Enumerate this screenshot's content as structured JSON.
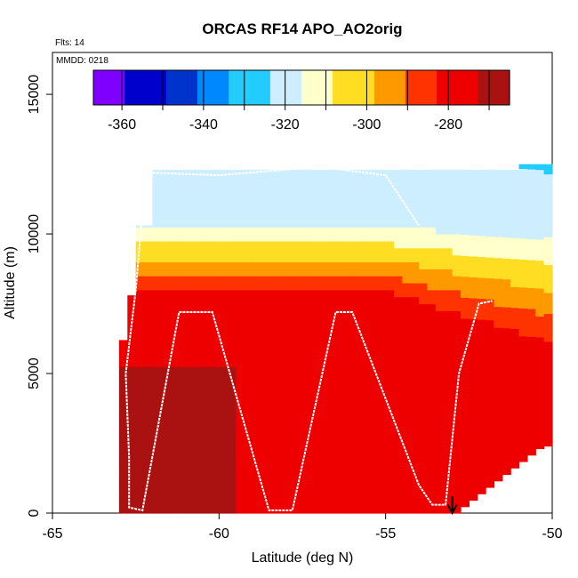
{
  "chart_data": {
    "type": "heatmap",
    "title": "ORCAS RF14 APO_AO2orig",
    "annotation_flights": "Flts: 14",
    "annotation_date": "MMDD: 0218",
    "xlabel": "Latitude (deg N)",
    "ylabel": "Altitude (m)",
    "xlim": [
      -65,
      -50
    ],
    "ylim": [
      0,
      16500
    ],
    "x_ticks": [
      -65,
      -60,
      -55,
      -50
    ],
    "x_tick_labels": [
      "-65",
      "-60",
      "-55",
      "-50"
    ],
    "y_ticks": [
      0,
      5000,
      10000,
      15000
    ],
    "y_tick_labels": [
      "0",
      "5000",
      "10000",
      "15000"
    ],
    "colorbar": {
      "min": -367,
      "max": -265,
      "ticks": [
        -360,
        -340,
        -320,
        -300,
        -280
      ],
      "tick_labels": [
        "-360",
        "-340",
        "-320",
        "-300",
        "-280"
      ],
      "colors": [
        "#7f00ff",
        "#0000cc",
        "#0033cc",
        "#0088ff",
        "#22ccff",
        "#cceeff",
        "#ffffcc",
        "#ffdd22",
        "#ff9900",
        "#ff3300",
        "#ee0000",
        "#aa1111"
      ]
    },
    "field_summary": {
      "lat_range": [
        -63,
        -50
      ],
      "alt_range": [
        0,
        12500
      ],
      "upper_layer_value": -318,
      "mid_layer_value": -300,
      "lower_layer_value": -277,
      "dark_band_value": -270
    },
    "flight_track": [
      [
        -62.2,
        12200
      ],
      [
        -62.5,
        8000
      ],
      [
        -62.8,
        5000
      ],
      [
        -62.7,
        2000
      ],
      [
        -62.7,
        200
      ],
      [
        -62.3,
        100
      ],
      [
        -61.2,
        7200
      ],
      [
        -60.2,
        7200
      ],
      [
        -58.5,
        100
      ],
      [
        -57.8,
        100
      ],
      [
        -56.5,
        7200
      ],
      [
        -56,
        7200
      ],
      [
        -54,
        1000
      ],
      [
        -53.6,
        300
      ],
      [
        -53.2,
        300
      ],
      [
        -52.8,
        5000
      ],
      [
        -52.2,
        7500
      ],
      [
        -51.8,
        7600
      ]
    ],
    "upper_track": [
      [
        -62.2,
        12200
      ],
      [
        -60,
        12100
      ],
      [
        -57,
        12400
      ],
      [
        -55,
        12100
      ],
      [
        -54,
        10300
      ]
    ],
    "marker_arrow": {
      "lat": -53,
      "label": ""
    }
  }
}
